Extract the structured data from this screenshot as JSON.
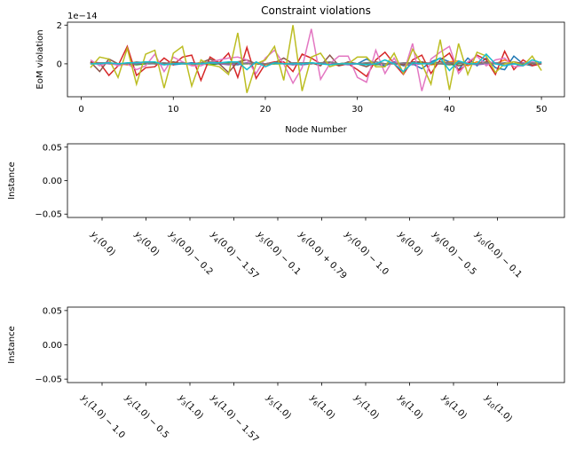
{
  "chart_data": [
    {
      "type": "line",
      "title": "Constraint violations",
      "xlabel": "Node Number",
      "ylabel": "EoM violation",
      "offset_text": "1e−14",
      "xlim": [
        -1.5,
        52.5
      ],
      "ylim": [
        -1.7,
        2.15
      ],
      "xticks": [
        0,
        10,
        20,
        30,
        40,
        50
      ],
      "yticks": [
        0,
        2
      ],
      "ytick_labels": [
        "−0",
        "0",
        "2"
      ],
      "ytick_values": [
        0,
        2
      ],
      "xtick_labels": [
        "0",
        "10",
        "20",
        "30",
        "40",
        "50"
      ],
      "x": [
        1,
        2,
        3,
        4,
        5,
        6,
        7,
        8,
        9,
        10,
        11,
        12,
        13,
        14,
        15,
        16,
        17,
        18,
        19,
        20,
        21,
        22,
        23,
        24,
        25,
        26,
        27,
        28,
        29,
        30,
        31,
        32,
        33,
        34,
        35,
        36,
        37,
        38,
        39,
        40,
        41,
        42,
        43,
        44,
        45,
        46,
        47,
        48,
        49,
        50
      ],
      "series": [
        {
          "color": "#1f77b4",
          "values": [
            0.05,
            0.0,
            0.05,
            -0.05,
            0.0,
            0.05,
            0.0,
            0.0,
            0.05,
            -0.05,
            0.0,
            0.05,
            0.0,
            0.0,
            0.05,
            0.0,
            -0.05,
            0.05,
            0.0,
            0.0,
            0.05,
            0.0,
            0.0,
            -0.05,
            0.0,
            0.05,
            0.0,
            0.0,
            0.05,
            0.0,
            0.25,
            0.0,
            -0.1,
            0.1,
            -0.1,
            0.0,
            -0.25,
            0.1,
            0.3,
            0.1,
            -0.3,
            0.3,
            -0.1,
            0.3,
            -0.2,
            -0.3,
            0.4,
            0.0,
            -0.1,
            0.1
          ]
        },
        {
          "color": "#ff7f0e",
          "values": [
            0.0,
            0.05,
            0.0,
            0.0,
            -0.05,
            0.0,
            0.05,
            0.0,
            0.0,
            0.05,
            0.0,
            -0.05,
            0.0,
            0.05,
            0.0,
            0.0,
            0.05,
            0.0,
            0.0,
            -0.05,
            0.0,
            0.05,
            0.0,
            0.0,
            0.0,
            0.05,
            0.0,
            -0.05,
            0.0,
            0.0,
            0.05,
            0.0,
            0.0,
            0.05,
            -0.05,
            0.0,
            0.1,
            -0.05,
            0.0,
            0.1,
            0.15,
            -0.1,
            0.1,
            0.0,
            0.0,
            0.2,
            0.0,
            -0.05,
            0.0,
            0.05
          ]
        },
        {
          "color": "#2ca02c",
          "values": [
            0.0,
            0.0,
            0.05,
            0.0,
            0.0,
            -0.05,
            0.0,
            0.05,
            0.0,
            0.0,
            0.05,
            0.0,
            0.0,
            -0.05,
            0.0,
            0.05,
            0.0,
            0.0,
            0.05,
            0.0,
            0.0,
            0.0,
            -0.05,
            0.0,
            0.05,
            0.0,
            0.0,
            0.0,
            0.05,
            0.0,
            0.0,
            -0.05,
            0.0,
            0.05,
            0.0,
            0.0,
            0.05,
            0.0,
            0.0,
            -0.05,
            0.0,
            0.05,
            0.0,
            0.0,
            0.05,
            0.0,
            0.0,
            -0.05,
            0.0,
            0.0
          ]
        },
        {
          "color": "#d62728",
          "values": [
            0.1,
            0.05,
            -0.6,
            -0.1,
            0.9,
            -0.6,
            -0.2,
            -0.15,
            0.3,
            -0.05,
            0.35,
            0.45,
            -0.85,
            0.35,
            0.05,
            0.55,
            -0.7,
            0.85,
            -0.75,
            0.0,
            0.1,
            0.1,
            -0.4,
            0.5,
            0.3,
            0.0,
            0.05,
            -0.1,
            0.0,
            -0.3,
            -0.65,
            0.2,
            0.6,
            0.0,
            -0.55,
            0.2,
            0.45,
            -0.5,
            0.2,
            0.55,
            -0.35,
            0.0,
            0.45,
            0.2,
            -0.55,
            0.65,
            -0.3,
            0.2,
            -0.1,
            0.0
          ]
        },
        {
          "color": "#9467bd",
          "values": [
            0.0,
            0.05,
            0.0,
            -0.05,
            0.0,
            0.0,
            0.05,
            0.0,
            -0.05,
            0.0,
            0.05,
            0.0,
            0.0,
            0.05,
            0.0,
            -0.05,
            0.0,
            0.05,
            0.0,
            0.0,
            0.05,
            0.0,
            -0.05,
            0.0,
            0.0,
            0.05,
            0.0,
            0.0,
            -0.05,
            0.0,
            0.05,
            0.0,
            0.0,
            0.05,
            0.0,
            -0.05,
            0.0,
            0.05,
            0.0,
            0.0,
            0.05,
            0.0,
            -0.05,
            0.0,
            0.05,
            0.0,
            0.0,
            0.05,
            0.0,
            0.0
          ]
        },
        {
          "color": "#8c564b",
          "values": [
            0.1,
            -0.4,
            0.25,
            0.0,
            0.0,
            0.05,
            0.1,
            0.0,
            0.0,
            0.1,
            0.0,
            0.0,
            0.05,
            0.25,
            0.0,
            -0.45,
            0.1,
            0.2,
            0.0,
            0.0,
            0.05,
            0.3,
            0.0,
            0.05,
            0.05,
            -0.1,
            0.45,
            -0.1,
            0.1,
            0.0,
            -0.15,
            0.1,
            0.0,
            0.0,
            -0.05,
            0.1,
            0.1,
            0.0,
            0.1,
            0.05,
            -0.1,
            0.0,
            0.0,
            0.1,
            0.0,
            0.0,
            0.1,
            0.0,
            0.0,
            0.05
          ]
        },
        {
          "color": "#e377c2",
          "values": [
            0.2,
            -0.1,
            0.1,
            -0.1,
            0.0,
            -0.3,
            -0.1,
            0.5,
            -0.4,
            0.35,
            0.1,
            -0.1,
            -0.1,
            0.1,
            0.2,
            0.3,
            0.35,
            0.2,
            -0.5,
            0.3,
            0.7,
            0.0,
            -1.0,
            -0.2,
            1.8,
            -0.8,
            0.0,
            0.4,
            0.4,
            -0.7,
            -0.95,
            0.7,
            -0.5,
            0.3,
            -0.5,
            1.05,
            -1.4,
            0.25,
            0.6,
            0.9,
            -0.5,
            0.1,
            0.4,
            -0.1,
            0.2,
            0.3,
            -0.15,
            -0.1,
            0.1,
            0.0
          ]
        },
        {
          "color": "#7f7f7f",
          "values": [
            0.0,
            0.05,
            0.05,
            0.0,
            0.0,
            0.1,
            0.05,
            0.0,
            0.05,
            0.0,
            0.05,
            0.0,
            0.05,
            0.1,
            0.05,
            0.0,
            0.1,
            0.0,
            0.05,
            0.0,
            0.05,
            0.0,
            0.05,
            0.05,
            0.0,
            0.05,
            0.1,
            0.0,
            0.05,
            0.0,
            0.05,
            0.1,
            0.0,
            0.0,
            0.05,
            0.05,
            0.0,
            0.05,
            0.0,
            0.05,
            0.05,
            0.0,
            0.0,
            0.05,
            0.0,
            0.05,
            0.0,
            0.0,
            0.05,
            0.0
          ]
        },
        {
          "color": "#bcbd22",
          "values": [
            -0.2,
            0.35,
            0.25,
            -0.7,
            0.8,
            -1.05,
            0.5,
            0.7,
            -1.25,
            0.55,
            0.9,
            -1.15,
            0.2,
            -0.05,
            -0.15,
            -0.55,
            1.6,
            -1.5,
            0.0,
            0.2,
            0.9,
            -0.85,
            2.0,
            -1.4,
            0.35,
            0.55,
            -0.15,
            0.0,
            0.0,
            0.35,
            0.35,
            -0.15,
            -0.15,
            0.55,
            -0.5,
            0.75,
            0.0,
            -1.05,
            1.25,
            -1.35,
            1.05,
            -0.55,
            0.6,
            0.4,
            -0.45,
            0.0,
            0.1,
            -0.1,
            0.4,
            -0.35
          ]
        },
        {
          "color": "#17becf",
          "values": [
            0.0,
            0.0,
            0.05,
            0.0,
            0.05,
            0.05,
            0.1,
            0.1,
            -0.05,
            0.0,
            0.0,
            0.0,
            0.0,
            0.05,
            0.05,
            0.1,
            0.1,
            -0.3,
            0.1,
            -0.15,
            0.05,
            0.0,
            0.0,
            0.0,
            0.05,
            0.0,
            -0.05,
            0.0,
            0.0,
            0.0,
            -0.05,
            0.0,
            0.2,
            0.0,
            -0.4,
            0.05,
            0.0,
            0.0,
            0.3,
            -0.35,
            0.15,
            0.0,
            0.0,
            0.5,
            0.0,
            -0.1,
            0.0,
            -0.1,
            0.2,
            0.05
          ]
        }
      ]
    },
    {
      "type": "scatter",
      "ylabel": "Instance",
      "ylim": [
        -0.055,
        0.055
      ],
      "ytick_labels": [
        "0.05",
        "0.00",
        "−0.05"
      ],
      "ytick_values": [
        0.05,
        0,
        -0.05
      ],
      "xtick_labels": [
        {
          "var": "y",
          "sub": "1",
          "rest": "(0.0)"
        },
        {
          "var": "y",
          "sub": "2",
          "rest": "(0.0)"
        },
        {
          "var": "y",
          "sub": "3",
          "rest": "(0.0) − 0.2"
        },
        {
          "var": "y",
          "sub": "4",
          "rest": "(0.0) − 1.57"
        },
        {
          "var": "y",
          "sub": "5",
          "rest": "(0.0) − 0.1"
        },
        {
          "var": "y",
          "sub": "6",
          "rest": "(0.0) + 0.79"
        },
        {
          "var": "y",
          "sub": "7",
          "rest": "(0.0) − 1.0"
        },
        {
          "var": "y",
          "sub": "8",
          "rest": "(0.0)"
        },
        {
          "var": "y",
          "sub": "9",
          "rest": "(0.0) − 0.5"
        },
        {
          "var": "y",
          "sub": "10",
          "rest": "(0.0) − 0.1"
        }
      ]
    },
    {
      "type": "scatter",
      "ylabel": "Instance",
      "ylim": [
        -0.055,
        0.055
      ],
      "ytick_labels": [
        "0.05",
        "0.00",
        "−0.05"
      ],
      "ytick_values": [
        0.05,
        0,
        -0.05
      ],
      "xtick_labels": [
        {
          "var": "y",
          "sub": "1",
          "rest": "(1.0) − 1.0"
        },
        {
          "var": "y",
          "sub": "2",
          "rest": "(1.0) − 0.5"
        },
        {
          "var": "y",
          "sub": "3",
          "rest": "(1.0)"
        },
        {
          "var": "y",
          "sub": "4",
          "rest": "(1.0) − 1.57"
        },
        {
          "var": "y",
          "sub": "5",
          "rest": "(1.0)"
        },
        {
          "var": "y",
          "sub": "6",
          "rest": "(1.0)"
        },
        {
          "var": "y",
          "sub": "7",
          "rest": "(1.0)"
        },
        {
          "var": "y",
          "sub": "8",
          "rest": "(1.0)"
        },
        {
          "var": "y",
          "sub": "9",
          "rest": "(1.0)"
        },
        {
          "var": "y",
          "sub": "10",
          "rest": "(1.0)"
        }
      ]
    }
  ]
}
